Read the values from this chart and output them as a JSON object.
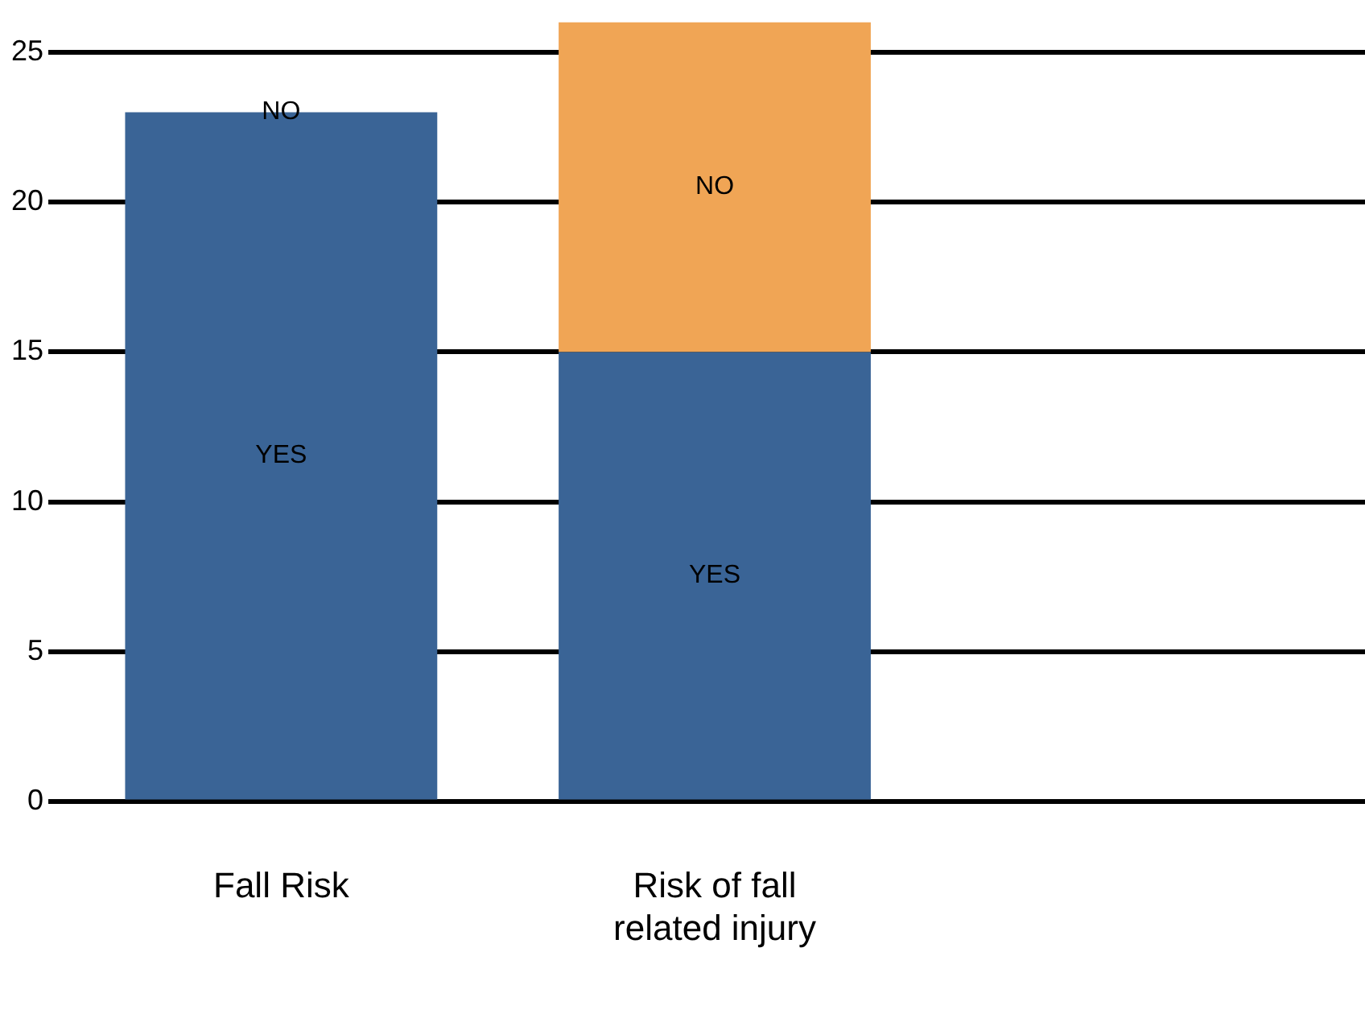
{
  "chart_data": {
    "type": "bar",
    "stacked": true,
    "categories": [
      "Fall Risk",
      "Risk of fall related injury",
      null
    ],
    "series": [
      {
        "name": "YES",
        "color": "#3a6496",
        "values": [
          23,
          15,
          null
        ]
      },
      {
        "name": "NO",
        "color": "#f0a555",
        "values": [
          0,
          11,
          null
        ]
      }
    ],
    "ylim": [
      0,
      26
    ],
    "yticks": [
      0,
      5,
      10,
      15,
      20,
      25
    ],
    "grid": "y",
    "legend": false
  }
}
